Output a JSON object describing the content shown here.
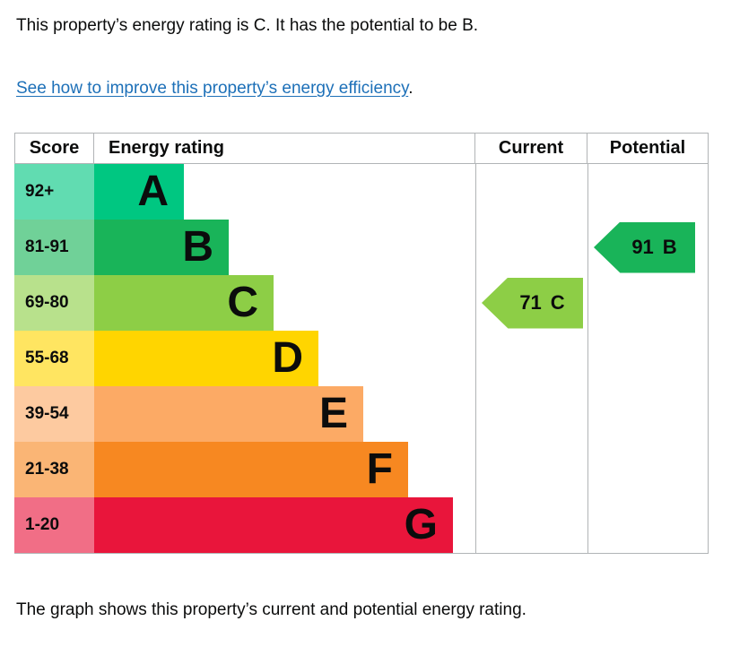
{
  "page": {
    "intro_text": "This property’s energy rating is C. It has the potential to be B.",
    "improve_link": {
      "text": "See how to improve this property’s energy efficiency",
      "suffix": "."
    },
    "caption": "The graph shows this property’s current and potential energy rating.",
    "colors": {
      "text": "#0b0c0c",
      "link": "#1d70b8",
      "table_border": "#b1b4b6"
    }
  },
  "table": {
    "headers": {
      "score": "Score",
      "rating": "Energy rating",
      "current": "Current",
      "potential": "Potential"
    },
    "rows": [
      {
        "score": "92+",
        "letter": "A",
        "color": "#00c781"
      },
      {
        "score": "81-91",
        "letter": "B",
        "color": "#19b459"
      },
      {
        "score": "69-80",
        "letter": "C",
        "color": "#8dce46"
      },
      {
        "score": "55-68",
        "letter": "D",
        "color": "#ffd500"
      },
      {
        "score": "39-54",
        "letter": "E",
        "color": "#fcaa65"
      },
      {
        "score": "21-38",
        "letter": "F",
        "color": "#f78821"
      },
      {
        "score": "1-20",
        "letter": "G",
        "color": "#e9153b"
      }
    ],
    "current_marker": {
      "value": "71",
      "band": "C",
      "row_index": 2,
      "color": "#8dce46"
    },
    "potential_marker": {
      "value": "91",
      "band": "B",
      "row_index": 1,
      "color": "#19b459"
    }
  },
  "chart_data": {
    "type": "bar",
    "title": "EPC energy rating chart",
    "columns": [
      "Score",
      "Energy rating",
      "Current",
      "Potential"
    ],
    "categories": [
      "A",
      "B",
      "C",
      "D",
      "E",
      "F",
      "G"
    ],
    "score_ranges": [
      "92+",
      "81-91",
      "69-80",
      "55-68",
      "39-54",
      "21-38",
      "1-20"
    ],
    "band_colors": [
      "#00c781",
      "#19b459",
      "#8dce46",
      "#ffd500",
      "#fcaa65",
      "#f78821",
      "#e9153b"
    ],
    "bar_relative_widths": [
      1,
      1.5,
      2,
      2.5,
      3,
      3.5,
      4
    ],
    "markers": [
      {
        "name": "Current",
        "score": 71,
        "band": "C"
      },
      {
        "name": "Potential",
        "score": 91,
        "band": "B"
      }
    ],
    "legend_position": "none",
    "grid": false
  }
}
